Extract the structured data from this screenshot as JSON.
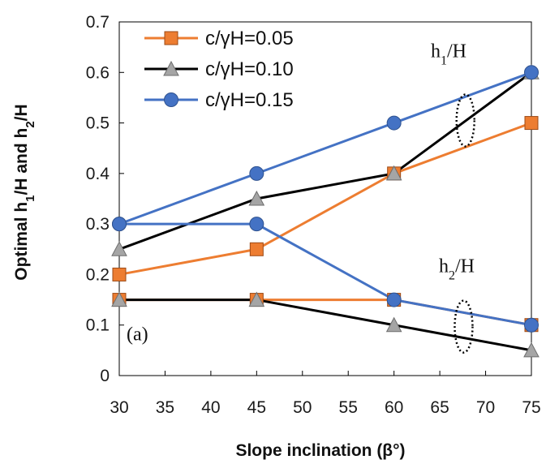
{
  "chart_data": {
    "type": "line",
    "xlabel": "Slope inclination (β°)",
    "ylabel": "Optimal h1/H and h2/H",
    "ylabel_parts": [
      "Optimal h",
      "1",
      "/H and h",
      "2",
      "/H"
    ],
    "xlim": [
      30,
      75
    ],
    "ylim": [
      0,
      0.7
    ],
    "x_ticks": [
      "30",
      "35",
      "40",
      "45",
      "50",
      "55",
      "60",
      "65",
      "70",
      "75"
    ],
    "y_ticks": [
      "0",
      "0.1",
      "0.2",
      "0.3",
      "0.4",
      "0.5",
      "0.6",
      "0.7"
    ],
    "grid": false,
    "legend_position": "top-left",
    "series": [
      {
        "name": "c/γH=0.05",
        "group": "h1/H",
        "marker": "square",
        "color": "#ED7D31",
        "x": [
          30,
          45,
          60,
          75
        ],
        "y": [
          0.2,
          0.25,
          0.4,
          0.5
        ]
      },
      {
        "name": "c/γH=0.10",
        "group": "h1/H",
        "marker": "triangle",
        "color": "#000000",
        "x": [
          30,
          45,
          60,
          75
        ],
        "y": [
          0.25,
          0.35,
          0.4,
          0.6
        ]
      },
      {
        "name": "c/γH=0.15",
        "group": "h1/H",
        "marker": "circle",
        "color": "#4472C4",
        "x": [
          30,
          45,
          60,
          75
        ],
        "y": [
          0.3,
          0.4,
          0.5,
          0.6
        ]
      },
      {
        "name": "c/γH=0.05",
        "group": "h2/H",
        "marker": "square",
        "color": "#ED7D31",
        "x": [
          30,
          45,
          60,
          75
        ],
        "y": [
          0.15,
          0.15,
          0.15,
          0.1
        ]
      },
      {
        "name": "c/γH=0.10",
        "group": "h2/H",
        "marker": "triangle",
        "color": "#000000",
        "x": [
          30,
          45,
          60,
          75
        ],
        "y": [
          0.15,
          0.15,
          0.1,
          0.05
        ]
      },
      {
        "name": "c/γH=0.15",
        "group": "h2/H",
        "marker": "circle",
        "color": "#4472C4",
        "x": [
          30,
          45,
          60,
          75
        ],
        "y": [
          0.3,
          0.3,
          0.15,
          0.1
        ]
      }
    ],
    "legend": [
      {
        "label": "c/γH=0.05",
        "marker": "square",
        "color": "#ED7D31"
      },
      {
        "label": "c/γH=0.10",
        "marker": "triangle",
        "color": "#000000"
      },
      {
        "label": "c/γH=0.15",
        "marker": "circle",
        "color": "#4472C4"
      }
    ],
    "annotations": {
      "panel_label": "(a)",
      "h1_label": {
        "base": "h",
        "sub": "1",
        "rest": "/H"
      },
      "h2_label": {
        "base": "h",
        "sub": "2",
        "rest": "/H"
      }
    },
    "marker_fill": {
      "square": "#ED7D31",
      "triangle": "#A5A5A5",
      "circle": "#4472C4"
    }
  }
}
